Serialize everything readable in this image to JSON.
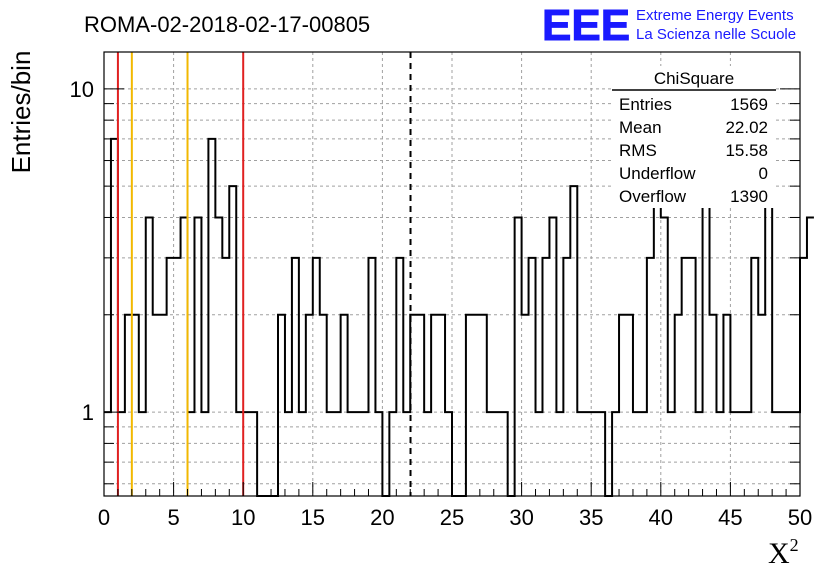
{
  "chart_data": {
    "type": "bar",
    "title": "ROMA-02-2018-02-17-00805",
    "xlabel": "X",
    "xlabel_sup": "2",
    "ylabel": "Entries/bin",
    "xlim": [
      0,
      50
    ],
    "ylim": [
      0.55,
      13
    ],
    "y_scale": "log",
    "grid": true,
    "bin_width": 0.5,
    "x_ticks": [
      "0",
      "5",
      "10",
      "15",
      "20",
      "25",
      "30",
      "35",
      "40",
      "45",
      "50"
    ],
    "y_ticks": [
      "1",
      "10"
    ],
    "values": [
      1,
      7,
      1,
      2,
      2,
      1,
      4,
      2,
      2,
      3,
      3,
      4,
      1,
      4,
      1,
      7,
      4,
      3,
      5,
      1,
      1,
      1,
      0,
      0,
      0,
      2,
      1,
      3,
      1,
      2,
      3,
      2,
      1,
      1,
      2,
      1,
      1,
      1,
      3,
      1,
      0,
      1,
      3,
      1,
      2,
      2,
      1,
      2,
      2,
      1,
      0,
      0,
      2,
      2,
      2,
      1,
      1,
      1,
      0,
      4,
      2,
      3,
      1,
      3,
      4,
      1,
      3,
      5,
      1,
      1,
      1,
      1,
      0,
      1,
      2,
      2,
      1,
      1,
      3,
      6,
      4,
      1,
      2,
      3,
      3,
      1,
      7,
      2,
      1,
      2,
      1,
      1,
      1,
      3,
      2,
      5,
      1,
      1,
      1,
      1,
      3,
      4
    ],
    "vlines": [
      {
        "x": 1,
        "color": "#e02020",
        "style": "solid"
      },
      {
        "x": 2,
        "color": "#f2b800",
        "style": "solid"
      },
      {
        "x": 6,
        "color": "#f2b800",
        "style": "solid"
      },
      {
        "x": 10,
        "color": "#e02020",
        "style": "solid"
      },
      {
        "x": 22.02,
        "color": "#000000",
        "style": "dashed"
      }
    ]
  },
  "stats_box": {
    "title": "ChiSquare",
    "rows": [
      {
        "label": "Entries",
        "value": "1569"
      },
      {
        "label": "Mean",
        "value": "22.02"
      },
      {
        "label": "RMS",
        "value": "15.58"
      },
      {
        "label": "Underflow",
        "value": "0"
      },
      {
        "label": "Overflow",
        "value": "1390"
      }
    ]
  },
  "logo": {
    "mark": "EEE",
    "line1": "Extreme Energy Events",
    "line2": "La Scienza nelle Scuole",
    "color": "#1a1aff"
  }
}
